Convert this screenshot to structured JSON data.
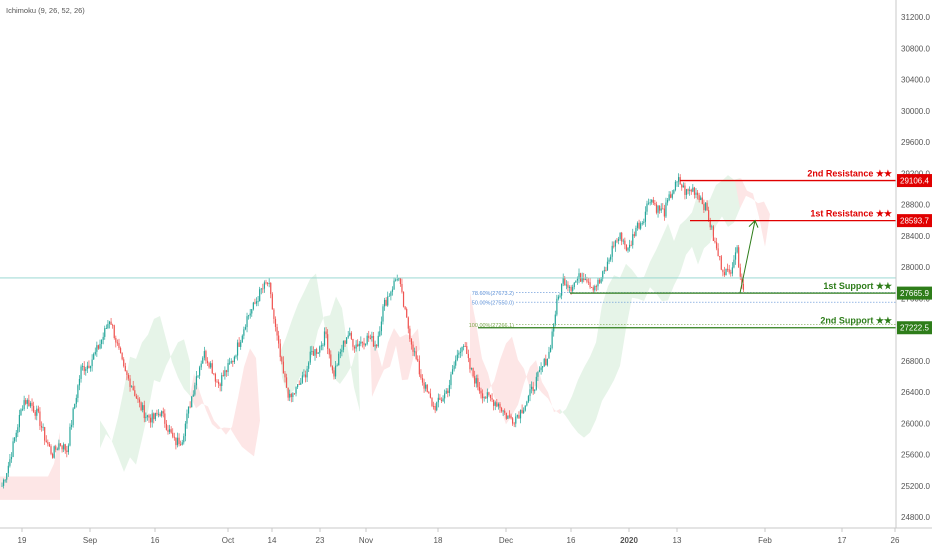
{
  "indicator_label": "Ichimoku (9, 26, 52, 26)",
  "colors": {
    "up": "#26a69a",
    "down": "#ef5350",
    "resistance": "#e00000",
    "support": "#2e7d1a",
    "fib_blue": "#5b8fd6",
    "fib_green": "#7aa84a",
    "axis_text": "#555555",
    "cloud_green": "#e3f3e6",
    "cloud_red": "#fde3e3"
  },
  "chart_data": {
    "type": "candlestick",
    "y_axis": {
      "min": 24700,
      "max": 31400,
      "ticks": [
        "31200.0",
        "30800.0",
        "30400.0",
        "30000.0",
        "29600.0",
        "29200.0",
        "28800.0",
        "28400.0",
        "28000.0",
        "27600.0",
        "27200.0",
        "26800.0",
        "26400.0",
        "26000.0",
        "25600.0",
        "25200.0",
        "24800.0"
      ]
    },
    "x_axis": {
      "ticks": [
        "19",
        "Sep",
        "16",
        "Oct",
        "14",
        "23",
        "Nov",
        "18",
        "Dec",
        "16",
        "2020",
        "13",
        "Feb",
        "17",
        "26"
      ]
    },
    "close_path": [
      25200,
      25500,
      25900,
      26300,
      26250,
      26100,
      25800,
      25600,
      25750,
      25650,
      26200,
      26700,
      26750,
      26900,
      27100,
      27350,
      27000,
      26650,
      26500,
      26250,
      26100,
      26050,
      26150,
      25950,
      25750,
      25800,
      26200,
      26600,
      26900,
      26750,
      26500,
      26650,
      26800,
      27050,
      27350,
      27500,
      27700,
      27800,
      27200,
      26650,
      26300,
      26450,
      26600,
      26900,
      26950,
      27150,
      26600,
      26900,
      27150,
      27000,
      27050,
      27100,
      27000,
      27500,
      27700,
      27900,
      27400,
      27000,
      26650,
      26400,
      26200,
      26300,
      26450,
      26800,
      27050,
      26700,
      26500,
      26350,
      26300,
      26250,
      26100,
      26050,
      26150,
      26300,
      26500,
      26700,
      26900,
      27500,
      27850,
      27750,
      27850,
      27900,
      27750,
      27800,
      28000,
      28300,
      28400,
      28200,
      28500,
      28600,
      28900,
      28750,
      28700,
      28950,
      29100,
      28950,
      29000,
      28900,
      28700,
      28300,
      28000,
      27900,
      28250,
      27700
    ],
    "levels": [
      {
        "label": "2nd Resistance ★★",
        "value_text": "29106.4",
        "value": 29106.4,
        "type": "resistance"
      },
      {
        "label": "1st Resistance ★★",
        "value_text": "28593.7",
        "value": 28593.7,
        "type": "resistance"
      },
      {
        "label": "1st Support ★★",
        "value_text": "27665.9",
        "value": 27665.9,
        "type": "support"
      },
      {
        "label": "2nd Support ★★",
        "value_text": "27222.5",
        "value": 27222.5,
        "type": "support"
      }
    ],
    "fib_labels": [
      {
        "text": "78.60%(27673.2)",
        "value": 27673.2,
        "color": "fib_blue"
      },
      {
        "text": "50.00%(27550.0)",
        "value": 27550.0,
        "color": "fib_blue"
      },
      {
        "text": "100.00%(27266.1)",
        "value": 27266.1,
        "color": "fib_green"
      }
    ],
    "current_price_line": 27860
  }
}
